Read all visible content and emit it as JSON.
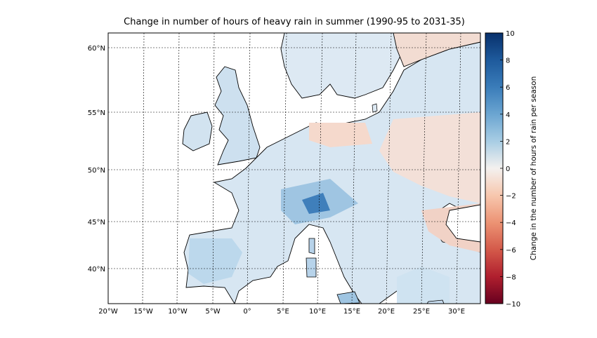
{
  "title": "Change in number of hours of heavy rain in summer (1990-95 to 2031-35)",
  "lat_labels": [
    "60°N",
    "55°N",
    "50°N",
    "45°N",
    "40°N"
  ],
  "lon_labels": [
    "20°W",
    "15°W",
    "10°W",
    "5°W",
    "0°",
    "5°E",
    "10°E",
    "15°E",
    "20°E",
    "25°E",
    "30°E"
  ],
  "colorbar": {
    "label": "Change in the number of hours of rain per season",
    "ticks": [
      "10",
      "8",
      "6",
      "4",
      "2",
      "0",
      "−2",
      "−4",
      "−6",
      "−8",
      "−10"
    ],
    "range": [
      -10,
      10
    ],
    "colormap": "RdBu",
    "high_color": "#08306b",
    "low_color": "#67001f",
    "mid_color": "#f7f7f7"
  }
}
